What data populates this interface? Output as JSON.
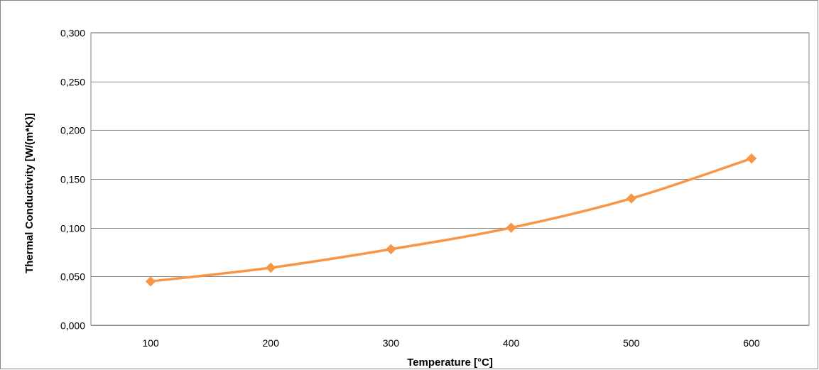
{
  "chart_data": {
    "type": "line",
    "title": "",
    "xlabel": "Temperature [°C]",
    "ylabel": "Thermal Conductivity [W/(m*K)]",
    "categories": [
      "100",
      "200",
      "300",
      "400",
      "500",
      "600"
    ],
    "series": [
      {
        "values": [
          0.045,
          0.059,
          0.078,
          0.1,
          0.13,
          0.171
        ],
        "color": "#F79646",
        "marker": "diamond",
        "smooth": true
      }
    ],
    "ylim": [
      0,
      0.3
    ],
    "yticks": [
      "0,000",
      "0,050",
      "0,100",
      "0,150",
      "0,200",
      "0,250",
      "0,300"
    ],
    "ytick_values": [
      0,
      0.05,
      0.1,
      0.15,
      0.2,
      0.25,
      0.3
    ],
    "grid": true,
    "legend": "none"
  }
}
